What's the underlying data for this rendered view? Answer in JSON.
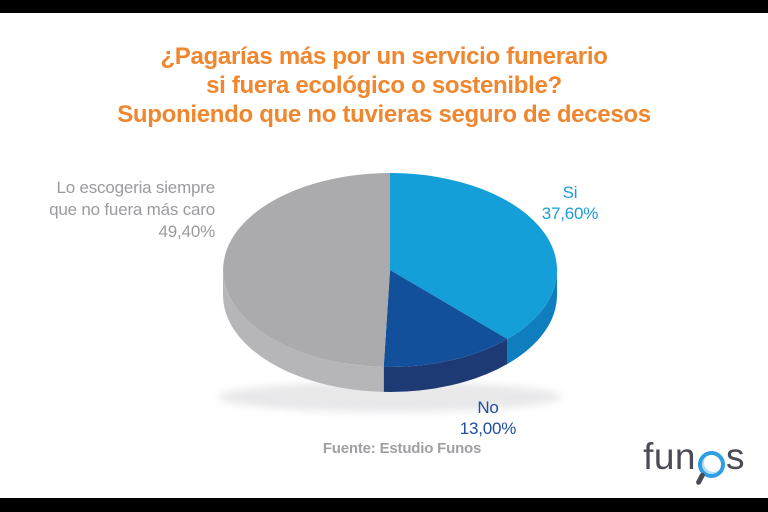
{
  "title": {
    "lines": [
      "¿Pagarías más por un servicio funerario",
      "si fuera ecológico o sostenible?",
      "Suponiendo que no tuvieras seguro de decesos"
    ],
    "color": "#F0862E"
  },
  "chart_data": {
    "type": "pie",
    "style": "3d",
    "title": "¿Pagarías más por un servicio funerario si fuera ecológico o sostenible? Suponiendo que no tuvieras seguro de decesos",
    "units": "%",
    "start_angle_deg": 0,
    "direction": "clockwise",
    "slices": [
      {
        "label": "Si",
        "value": 37.6,
        "display_value": "37,60%",
        "color": "#149FD9",
        "side_color": "#0E7EBE",
        "label_color": "#1B9CD8"
      },
      {
        "label": "No",
        "value": 13.0,
        "display_value": "13,00%",
        "color": "#13509B",
        "side_color": "#1E3A75",
        "label_color": "#1F4E9C"
      },
      {
        "label": "Lo escogeria siempre que no fuera más caro",
        "value": 49.4,
        "display_value": "49,40%",
        "color": "#ABABAD",
        "side_color": "#B6B6B9",
        "label_color": "#9B9B9F"
      }
    ],
    "legend": "none",
    "source": "Fuente: Estudio Funos"
  },
  "labels": {
    "left": {
      "line1": "Lo escogeria siempre",
      "line2": "que no fuera más caro",
      "value": "49,40%"
    },
    "si": {
      "name": "Si",
      "value": "37,60%"
    },
    "no": {
      "name": "No",
      "value": "13,00%"
    }
  },
  "source_text": "Fuente: Estudio Funos",
  "logo": {
    "prefix": "fun",
    "suffix": "s",
    "accent_color": "#2E9FE0",
    "text_color": "#4B4B56"
  }
}
